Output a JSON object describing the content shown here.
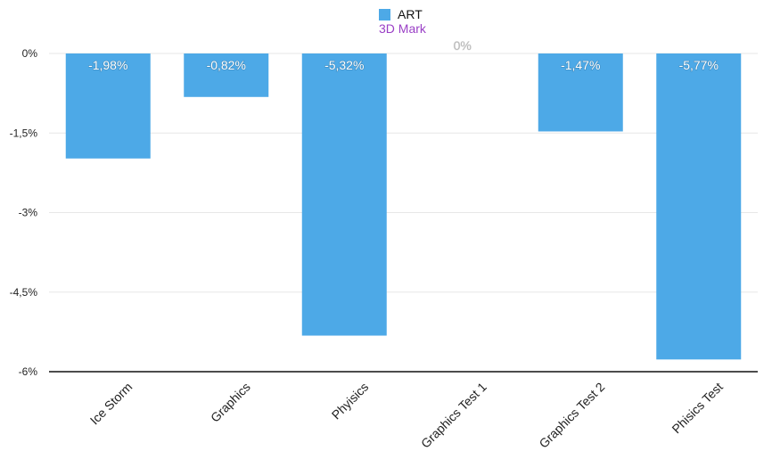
{
  "chart_data": {
    "type": "bar",
    "title": "3D Mark",
    "categories": [
      "Ice Storm",
      "Graphics",
      "Phyisics",
      "Graphics Test 1",
      "Graphics Test 2",
      "Phisics Test"
    ],
    "series": [
      {
        "name": "ART",
        "values": [
          -1.98,
          -0.82,
          -5.32,
          0,
          -1.47,
          -5.77
        ],
        "labels": [
          "-1,98%",
          "-0,82%",
          "-5,32%",
          "0%",
          "-1,47%",
          "-5,77%"
        ]
      }
    ],
    "yticks": [
      0,
      -1.5,
      -3,
      -4.5,
      -6
    ],
    "ytick_labels": [
      "0%",
      "-1,5%",
      "-3%",
      "-4,5%",
      "-6%"
    ],
    "ylim": [
      -6,
      0
    ],
    "legend": "top-center",
    "grid": true,
    "colors": {
      "bar": "#4da9e7",
      "title": "#9a3fc6",
      "grid": "#e7e7e7",
      "axis": "#111111"
    }
  }
}
